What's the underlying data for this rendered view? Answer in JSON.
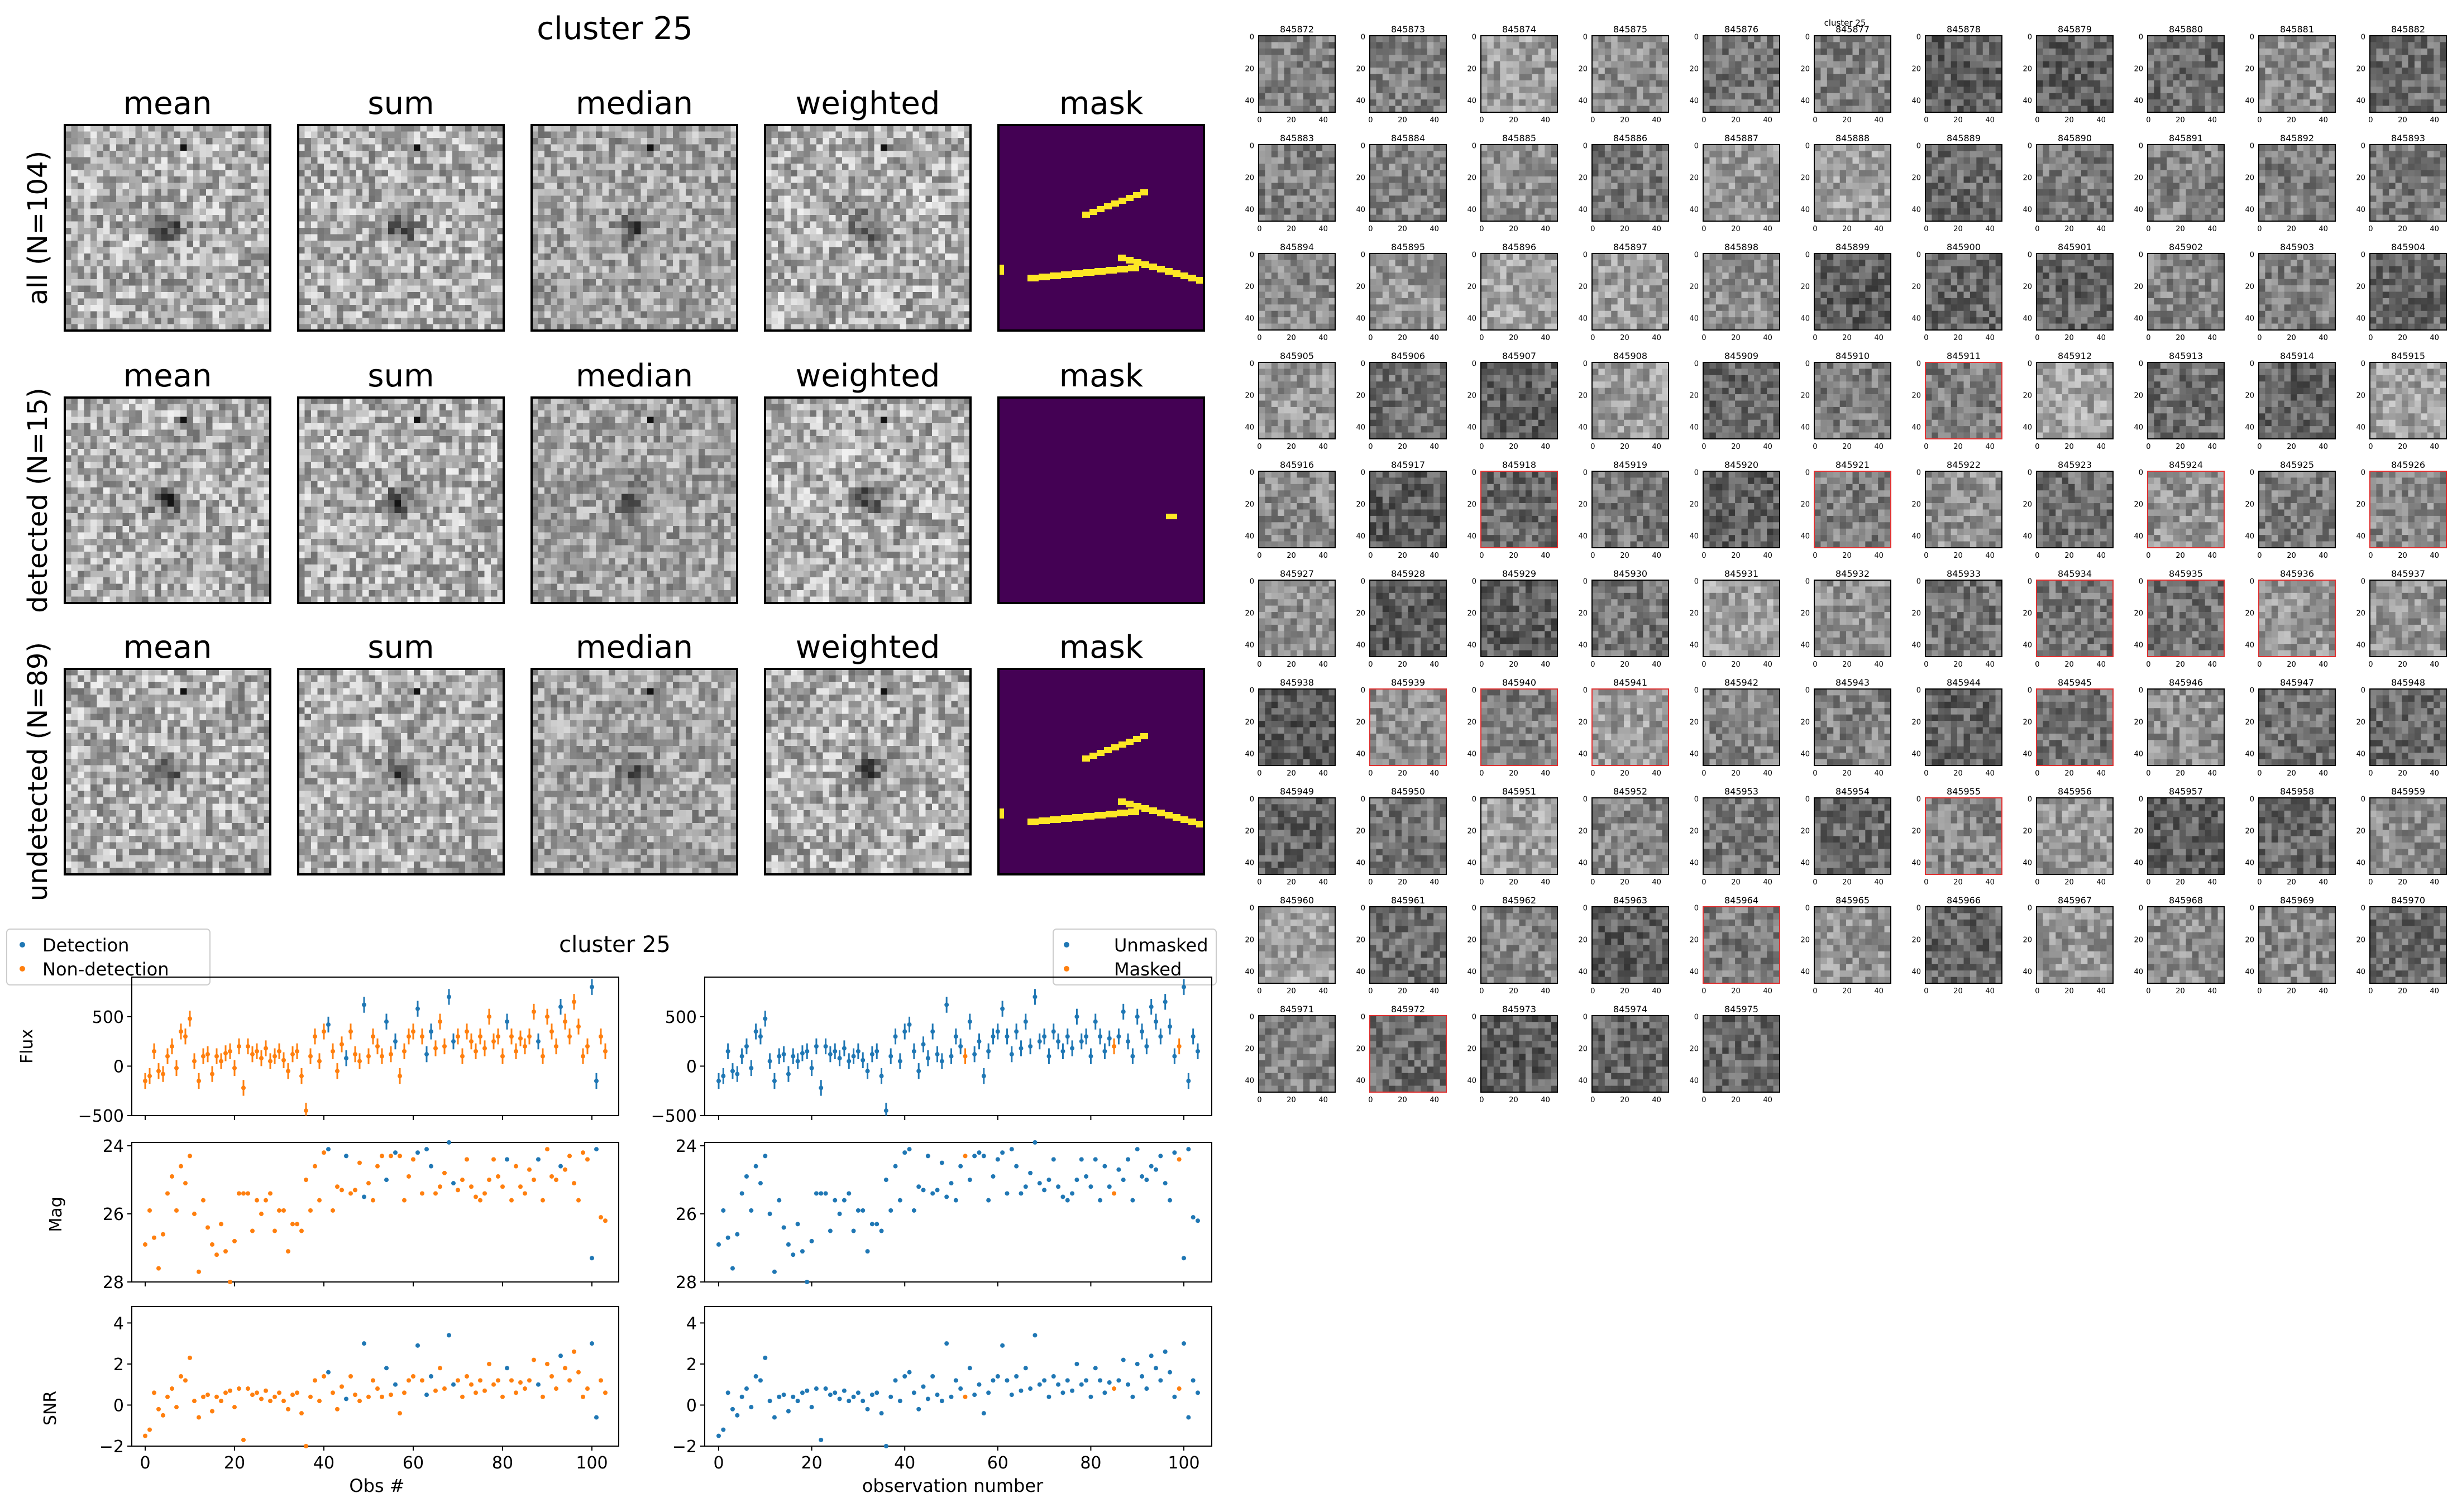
{
  "figure_title": "cluster 25",
  "coadd": {
    "columns": [
      "mean",
      "sum",
      "median",
      "weighted",
      "mask"
    ],
    "rows": [
      {
        "label": "all (N=104)",
        "mask_tracks": 3
      },
      {
        "label": "detected (N=15)",
        "mask_tracks": 0
      },
      {
        "label": "undetected (N=89)",
        "mask_tracks": 3
      }
    ],
    "mask_colors": {
      "background": "#440154",
      "masked": "#fde725"
    }
  },
  "lightcurve_title": "cluster 25",
  "legend_left": {
    "items": [
      "Detection",
      "Non-detection"
    ]
  },
  "legend_right": {
    "items": [
      "Unmasked",
      "Masked"
    ]
  },
  "colors": {
    "blue": "#1f77b4",
    "orange": "#ff7f0e"
  },
  "left_xlabel": "Obs #",
  "right_xlabel": "observation number",
  "ylabels": [
    "Flux",
    "Mag",
    "SNR"
  ],
  "stamps_title": "cluster 25",
  "stamps": {
    "first_id": 845872,
    "last_id": 845975,
    "columns": 11,
    "tick_labels_y": [
      "0",
      "20",
      "40"
    ],
    "tick_labels_x": [
      "0",
      "20",
      "40"
    ],
    "red_outlined": [
      845911,
      845918,
      845921,
      845924,
      845926,
      845934,
      845935,
      845936,
      845939,
      845940,
      845941,
      845945,
      845955,
      845964,
      845972
    ]
  },
  "chart_data": [
    {
      "type": "scatter",
      "title": "cluster 25",
      "xlabel": "Obs #",
      "panels": [
        {
          "ylabel": "Flux",
          "ylim": [
            -500,
            900
          ],
          "yticks": [
            -500,
            0,
            500
          ]
        },
        {
          "ylabel": "Mag",
          "ylim": [
            28,
            23.9
          ],
          "yticks": [
            24,
            26,
            28
          ],
          "inverted": true
        },
        {
          "ylabel": "SNR",
          "ylim": [
            -2,
            4.8
          ],
          "yticks": [
            -2,
            0,
            2,
            4
          ]
        }
      ],
      "xlim": [
        -3,
        106
      ],
      "xticks": [
        0,
        20,
        40,
        60,
        80,
        100
      ],
      "series": [
        {
          "name": "Detection",
          "color": "#1f77b4",
          "indices": [
            41,
            45,
            49,
            54,
            56,
            61,
            63,
            64,
            68,
            69,
            81,
            88,
            93,
            100,
            101
          ]
        },
        {
          "name": "Non-detection",
          "color": "#ff7f0e",
          "indices": "others"
        }
      ],
      "x": [
        0,
        1,
        2,
        3,
        4,
        5,
        6,
        7,
        8,
        9,
        10,
        11,
        12,
        13,
        14,
        15,
        16,
        17,
        18,
        19,
        20,
        21,
        22,
        23,
        24,
        25,
        26,
        27,
        28,
        29,
        30,
        31,
        32,
        33,
        34,
        35,
        36,
        37,
        38,
        39,
        40,
        41,
        42,
        43,
        44,
        45,
        46,
        47,
        48,
        49,
        50,
        51,
        52,
        53,
        54,
        55,
        56,
        57,
        58,
        59,
        60,
        61,
        62,
        63,
        64,
        65,
        66,
        67,
        68,
        69,
        70,
        71,
        72,
        73,
        74,
        75,
        76,
        77,
        78,
        79,
        80,
        81,
        82,
        83,
        84,
        85,
        86,
        87,
        88,
        89,
        90,
        91,
        92,
        93,
        94,
        95,
        96,
        97,
        98,
        99,
        100,
        101,
        102,
        103
      ],
      "flux": [
        -150,
        -100,
        150,
        -50,
        -80,
        100,
        200,
        -20,
        350,
        300,
        480,
        50,
        -150,
        100,
        120,
        -80,
        100,
        50,
        130,
        150,
        -20,
        200,
        -220,
        200,
        120,
        150,
        80,
        180,
        50,
        100,
        150,
        60,
        -50,
        120,
        150,
        -100,
        -450,
        100,
        300,
        50,
        350,
        420,
        150,
        -50,
        220,
        80,
        350,
        120,
        50,
        620,
        100,
        300,
        200,
        100,
        450,
        120,
        250,
        -100,
        150,
        300,
        350,
        580,
        300,
        120,
        350,
        180,
        450,
        200,
        700,
        250,
        300,
        100,
        350,
        250,
        150,
        300,
        180,
        500,
        250,
        300,
        100,
        450,
        300,
        150,
        280,
        200,
        300,
        550,
        250,
        100,
        500,
        350,
        200,
        600,
        450,
        300,
        650,
        400,
        100,
        200,
        800,
        -150,
        300,
        150
      ],
      "flux_err": [
        80,
        80,
        80,
        80,
        80,
        80,
        80,
        80,
        80,
        80,
        80,
        80,
        80,
        80,
        80,
        80,
        80,
        80,
        80,
        80,
        80,
        80,
        80,
        80,
        80,
        80,
        80,
        80,
        80,
        80,
        80,
        80,
        80,
        80,
        80,
        80,
        80,
        80,
        80,
        80,
        80,
        80,
        80,
        80,
        80,
        80,
        80,
        80,
        80,
        80,
        80,
        80,
        80,
        80,
        80,
        80,
        80,
        80,
        80,
        80,
        80,
        80,
        80,
        80,
        80,
        80,
        80,
        80,
        80,
        80,
        80,
        80,
        80,
        80,
        80,
        80,
        80,
        80,
        80,
        80,
        80,
        80,
        80,
        80,
        80,
        80,
        80,
        80,
        80,
        80,
        80,
        80,
        80,
        80,
        80,
        80,
        80,
        80,
        80,
        80,
        80,
        80,
        80,
        80
      ],
      "mag": [
        26.9,
        25.9,
        26.7,
        27.6,
        26.6,
        25.4,
        24.9,
        25.9,
        24.6,
        25.1,
        24.3,
        26.0,
        27.7,
        25.6,
        26.4,
        26.9,
        27.2,
        26.3,
        27.1,
        28.0,
        26.8,
        25.4,
        25.4,
        25.4,
        26.5,
        25.6,
        26.0,
        25.6,
        25.4,
        26.5,
        25.9,
        25.9,
        27.1,
        26.3,
        26.3,
        26.5,
        25.0,
        25.9,
        24.6,
        25.6,
        24.2,
        24.1,
        25.9,
        25.2,
        25.3,
        24.3,
        25.4,
        25.3,
        24.5,
        25.5,
        25.1,
        25.6,
        24.6,
        24.3,
        25.0,
        24.3,
        24.2,
        24.3,
        25.6,
        24.9,
        24.4,
        24.2,
        25.4,
        24.1,
        24.6,
        25.4,
        25.2,
        24.8,
        23.9,
        25.1,
        25.3,
        25.0,
        24.4,
        25.2,
        25.5,
        25.6,
        25.4,
        25.0,
        24.4,
        24.9,
        25.2,
        24.4,
        25.6,
        24.6,
        25.2,
        25.4,
        24.7,
        25.0,
        24.4,
        25.6,
        24.1,
        24.9,
        25.0,
        24.6,
        24.7,
        24.3,
        25.1,
        25.6,
        24.2,
        24.4,
        27.3,
        24.1,
        26.1,
        26.2
      ],
      "snr": [
        -1.5,
        -1.2,
        0.6,
        -0.2,
        -0.5,
        0.4,
        0.8,
        -0.1,
        1.4,
        1.2,
        2.3,
        0.2,
        -0.6,
        0.4,
        0.5,
        -0.3,
        0.4,
        0.2,
        0.6,
        0.7,
        -0.1,
        0.8,
        -1.7,
        0.8,
        0.5,
        0.6,
        0.3,
        0.7,
        0.2,
        0.4,
        0.6,
        0.2,
        -0.2,
        0.5,
        0.6,
        -0.4,
        -2.0,
        0.4,
        1.2,
        0.2,
        1.4,
        1.6,
        0.6,
        -0.2,
        0.9,
        0.3,
        1.4,
        0.5,
        0.2,
        3.0,
        0.4,
        1.2,
        0.8,
        0.4,
        1.8,
        0.5,
        1.0,
        -0.4,
        0.6,
        1.2,
        1.4,
        2.9,
        1.2,
        0.5,
        1.4,
        0.7,
        1.8,
        0.8,
        3.4,
        1.0,
        1.2,
        0.4,
        1.4,
        1.0,
        0.6,
        1.2,
        0.7,
        2.0,
        1.0,
        1.2,
        0.4,
        1.8,
        1.2,
        0.6,
        1.1,
        0.8,
        1.2,
        2.2,
        1.0,
        0.4,
        2.0,
        1.4,
        0.8,
        2.4,
        1.8,
        1.2,
        2.6,
        1.6,
        0.4,
        0.8,
        3.0,
        -0.6,
        1.2,
        0.6
      ]
    },
    {
      "type": "scatter",
      "xlabel": "observation number",
      "series": [
        {
          "name": "Unmasked",
          "color": "#1f77b4",
          "indices": "others"
        },
        {
          "name": "Masked",
          "color": "#ff7f0e",
          "indices": [
            53,
            85,
            99
          ]
        }
      ],
      "note_data": "same x/flux/mag/snr arrays as first chart"
    }
  ]
}
